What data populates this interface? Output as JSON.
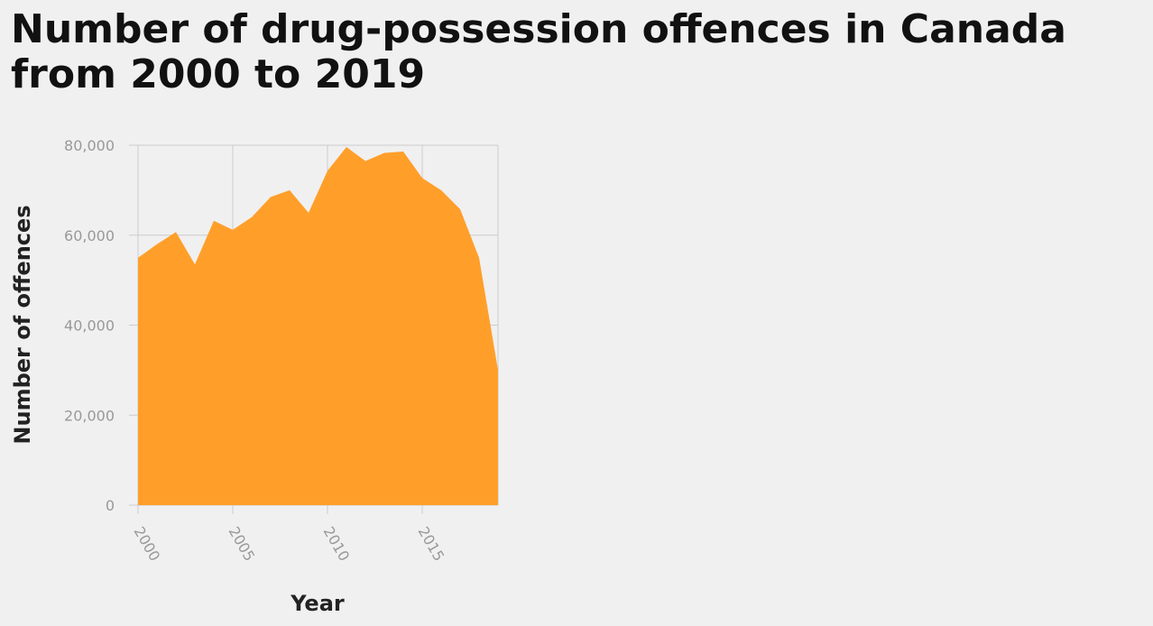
{
  "chart_data": {
    "type": "area",
    "title": "Number of drug-possession offences in Canada from 2000 to 2019",
    "xlabel": "Year",
    "ylabel": "Number of offences",
    "xlim": [
      2000,
      2019
    ],
    "ylim": [
      0,
      80000
    ],
    "x_ticks": [
      2000,
      2005,
      2010,
      2015
    ],
    "y_ticks": [
      0,
      20000,
      40000,
      60000,
      80000
    ],
    "y_tick_labels": [
      "0",
      "20,000",
      "40,000",
      "60,000",
      "80,000"
    ],
    "grid": true,
    "series": [
      {
        "color": "#ff9f2a",
        "x": [
          2000,
          2001,
          2002,
          2003,
          2004,
          2005,
          2006,
          2007,
          2008,
          2009,
          2010,
          2011,
          2012,
          2013,
          2014,
          2015,
          2016,
          2017,
          2018,
          2019
        ],
        "values": [
          55000,
          58000,
          60700,
          53500,
          63200,
          61200,
          64000,
          68500,
          70000,
          65000,
          74300,
          79600,
          76500,
          78300,
          78600,
          72700,
          70000,
          65800,
          55000,
          30000
        ]
      }
    ]
  }
}
